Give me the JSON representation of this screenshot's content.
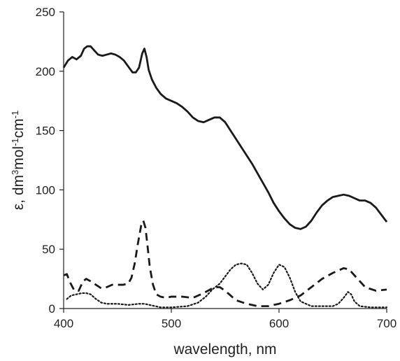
{
  "chart_data": {
    "type": "line",
    "title": "",
    "xlabel": "wavelength, nm",
    "ylabel_parts": {
      "base": "ε, dm",
      "sup1": "3",
      "mid1": "mol",
      "sup2": "-1",
      "mid2": "cm",
      "sup3": "-1"
    },
    "xlim": [
      400,
      700
    ],
    "ylim": [
      0,
      250
    ],
    "x_ticks": [
      400,
      500,
      600,
      700
    ],
    "y_ticks": [
      0,
      50,
      100,
      150,
      200,
      250
    ],
    "grid": false,
    "legend": "none",
    "series": [
      {
        "style": "solid",
        "color": "#1a1a1a",
        "points": [
          [
            400,
            203
          ],
          [
            404,
            209
          ],
          [
            408,
            212
          ],
          [
            412,
            210
          ],
          [
            416,
            213
          ],
          [
            419,
            219
          ],
          [
            422,
            221
          ],
          [
            425,
            221
          ],
          [
            428,
            218
          ],
          [
            432,
            214
          ],
          [
            436,
            213
          ],
          [
            440,
            214
          ],
          [
            444,
            215
          ],
          [
            448,
            214
          ],
          [
            452,
            212
          ],
          [
            456,
            209
          ],
          [
            460,
            204
          ],
          [
            464,
            199
          ],
          [
            467,
            199
          ],
          [
            470,
            203
          ],
          [
            473,
            215
          ],
          [
            475,
            219
          ],
          [
            477,
            212
          ],
          [
            479,
            201
          ],
          [
            482,
            193
          ],
          [
            486,
            186
          ],
          [
            490,
            181
          ],
          [
            495,
            177
          ],
          [
            500,
            175
          ],
          [
            505,
            173
          ],
          [
            510,
            170
          ],
          [
            515,
            166
          ],
          [
            520,
            161
          ],
          [
            525,
            158
          ],
          [
            530,
            157
          ],
          [
            535,
            159
          ],
          [
            540,
            161
          ],
          [
            545,
            161
          ],
          [
            550,
            157
          ],
          [
            555,
            150
          ],
          [
            560,
            143
          ],
          [
            565,
            136
          ],
          [
            570,
            129
          ],
          [
            575,
            122
          ],
          [
            580,
            114
          ],
          [
            585,
            106
          ],
          [
            590,
            98
          ],
          [
            595,
            89
          ],
          [
            600,
            82
          ],
          [
            605,
            76
          ],
          [
            610,
            71
          ],
          [
            615,
            68
          ],
          [
            620,
            67
          ],
          [
            625,
            69
          ],
          [
            630,
            74
          ],
          [
            635,
            81
          ],
          [
            640,
            87
          ],
          [
            645,
            91
          ],
          [
            650,
            94
          ],
          [
            655,
            95
          ],
          [
            660,
            96
          ],
          [
            665,
            95
          ],
          [
            670,
            93
          ],
          [
            675,
            91
          ],
          [
            680,
            91
          ],
          [
            685,
            89
          ],
          [
            690,
            85
          ],
          [
            695,
            79
          ],
          [
            700,
            73
          ]
        ]
      },
      {
        "style": "dashed",
        "color": "#1a1a1a",
        "points": [
          [
            400,
            28
          ],
          [
            403,
            29
          ],
          [
            406,
            22
          ],
          [
            410,
            15
          ],
          [
            414,
            15
          ],
          [
            418,
            23
          ],
          [
            421,
            25
          ],
          [
            425,
            23
          ],
          [
            430,
            20
          ],
          [
            435,
            17
          ],
          [
            440,
            18
          ],
          [
            445,
            20
          ],
          [
            450,
            20
          ],
          [
            455,
            20
          ],
          [
            460,
            21
          ],
          [
            463,
            26
          ],
          [
            466,
            38
          ],
          [
            469,
            55
          ],
          [
            472,
            70
          ],
          [
            474,
            74
          ],
          [
            476,
            68
          ],
          [
            478,
            52
          ],
          [
            480,
            35
          ],
          [
            483,
            20
          ],
          [
            486,
            12
          ],
          [
            490,
            10
          ],
          [
            495,
            9
          ],
          [
            500,
            10
          ],
          [
            505,
            10
          ],
          [
            510,
            10
          ],
          [
            520,
            9
          ],
          [
            530,
            13
          ],
          [
            540,
            18
          ],
          [
            545,
            18
          ],
          [
            550,
            15
          ],
          [
            555,
            11
          ],
          [
            560,
            7
          ],
          [
            570,
            4
          ],
          [
            580,
            2
          ],
          [
            590,
            2
          ],
          [
            600,
            4
          ],
          [
            610,
            7
          ],
          [
            620,
            11
          ],
          [
            630,
            18
          ],
          [
            640,
            25
          ],
          [
            650,
            30
          ],
          [
            660,
            34
          ],
          [
            665,
            33
          ],
          [
            670,
            28
          ],
          [
            675,
            23
          ],
          [
            680,
            18
          ],
          [
            690,
            15
          ],
          [
            700,
            16
          ]
        ]
      },
      {
        "style": "dotted",
        "color": "#1a1a1a",
        "points": [
          [
            403,
            8
          ],
          [
            407,
            11
          ],
          [
            412,
            12
          ],
          [
            417,
            13
          ],
          [
            421,
            13
          ],
          [
            425,
            12
          ],
          [
            430,
            8
          ],
          [
            435,
            5
          ],
          [
            440,
            4
          ],
          [
            450,
            4
          ],
          [
            460,
            3
          ],
          [
            470,
            4
          ],
          [
            475,
            4
          ],
          [
            480,
            3
          ],
          [
            490,
            1
          ],
          [
            500,
            1
          ],
          [
            515,
            2
          ],
          [
            525,
            5
          ],
          [
            532,
            10
          ],
          [
            538,
            16
          ],
          [
            545,
            21
          ],
          [
            550,
            27
          ],
          [
            555,
            33
          ],
          [
            560,
            37
          ],
          [
            565,
            38
          ],
          [
            570,
            37
          ],
          [
            575,
            30
          ],
          [
            580,
            21
          ],
          [
            585,
            16
          ],
          [
            590,
            20
          ],
          [
            595,
            30
          ],
          [
            600,
            37
          ],
          [
            605,
            35
          ],
          [
            610,
            26
          ],
          [
            615,
            14
          ],
          [
            620,
            6
          ],
          [
            630,
            2
          ],
          [
            645,
            2
          ],
          [
            650,
            2
          ],
          [
            655,
            4
          ],
          [
            660,
            9
          ],
          [
            664,
            14
          ],
          [
            667,
            12
          ],
          [
            670,
            6
          ],
          [
            675,
            2
          ],
          [
            685,
            1
          ],
          [
            700,
            1
          ]
        ]
      }
    ]
  }
}
